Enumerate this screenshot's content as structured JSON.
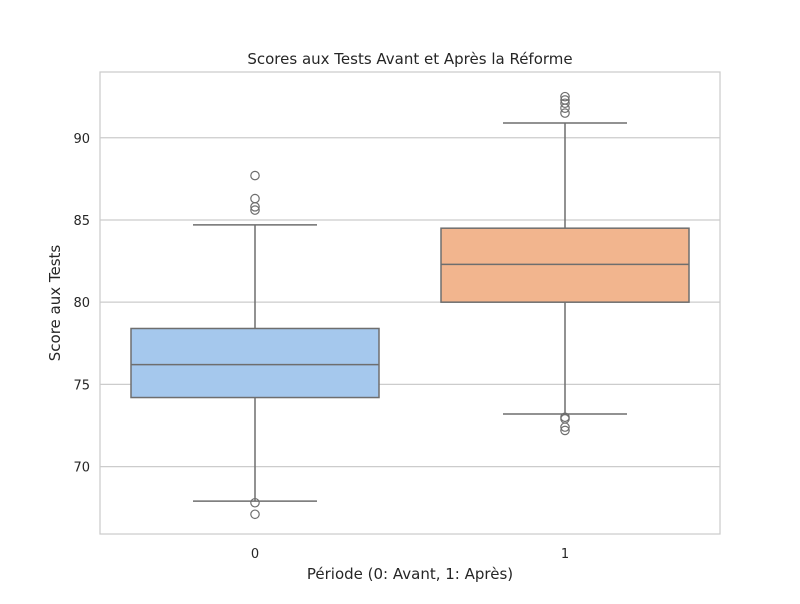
{
  "chart_data": {
    "type": "box",
    "title": "Scores aux Tests Avant et Après la Réforme",
    "xlabel": "Période (0: Avant, 1: Après)",
    "ylabel": "Score aux Tests",
    "categories": [
      "0",
      "1"
    ],
    "ylim": [
      65.9,
      94.0
    ],
    "yticks": [
      70,
      75,
      80,
      85,
      90
    ],
    "ytick_labels": [
      "70",
      "75",
      "80",
      "85",
      "90"
    ],
    "grid": "horizontal",
    "style": "seaborn-whitegrid",
    "box_edge_color": "#6e6e6e",
    "boxes": [
      {
        "category": "0",
        "color": "#a5c8ed",
        "whisker_low": 67.9,
        "q1": 74.2,
        "median": 76.2,
        "q3": 78.4,
        "whisker_high": 84.7,
        "outliers": [
          67.8,
          67.1,
          85.6,
          85.8,
          86.3,
          87.7
        ]
      },
      {
        "category": "1",
        "color": "#f2b58e",
        "whisker_low": 73.2,
        "q1": 80.0,
        "median": 82.3,
        "q3": 84.5,
        "whisker_high": 90.9,
        "outliers": [
          73.0,
          72.9,
          72.4,
          72.2,
          91.5,
          91.8,
          92.1,
          92.3,
          92.5
        ]
      }
    ]
  }
}
